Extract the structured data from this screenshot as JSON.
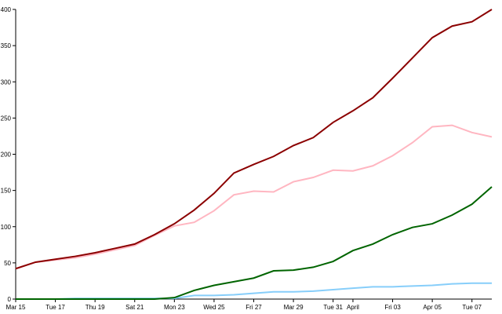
{
  "chart_data": {
    "type": "line",
    "categories": [
      "Mar 15",
      null,
      "Tue 17",
      null,
      "Thu 19",
      null,
      "Sat 21",
      null,
      "Mon 23",
      null,
      "Wed 25",
      null,
      "Fri 27",
      null,
      "Mar 29",
      null,
      "Tue 31",
      "April",
      null,
      "Fri 03",
      null,
      "Apr 05",
      null,
      "Tue 07",
      null
    ],
    "series": [
      {
        "color": "#8b0000",
        "values": [
          42,
          51,
          55,
          59,
          64,
          70,
          76,
          89,
          104,
          123,
          146,
          174,
          186,
          197,
          212,
          223,
          244,
          260,
          278,
          305,
          333,
          361,
          377,
          383,
          400
        ]
      },
      {
        "color": "#ffb6c1",
        "values": [
          42,
          51,
          54,
          57,
          62,
          68,
          74,
          88,
          101,
          106,
          122,
          144,
          149,
          148,
          162,
          168,
          178,
          177,
          184,
          198,
          216,
          238,
          240,
          230,
          224
        ]
      },
      {
        "color": "#006400",
        "values": [
          0,
          0,
          0,
          0,
          0,
          0,
          0,
          0,
          2,
          12,
          19,
          24,
          29,
          39,
          40,
          44,
          52,
          67,
          76,
          89,
          99,
          104,
          116,
          131,
          155
        ]
      },
      {
        "color": "#87cefa",
        "values": [
          0,
          0,
          0,
          1,
          1,
          1,
          1,
          1,
          1,
          5,
          5,
          6,
          8,
          10,
          10,
          11,
          13,
          15,
          17,
          17,
          18,
          19,
          21,
          22,
          22
        ]
      }
    ],
    "ylim": [
      0,
      400
    ],
    "yticks": [
      0,
      50,
      100,
      150,
      200,
      250,
      300,
      350,
      400
    ],
    "grid": false
  }
}
